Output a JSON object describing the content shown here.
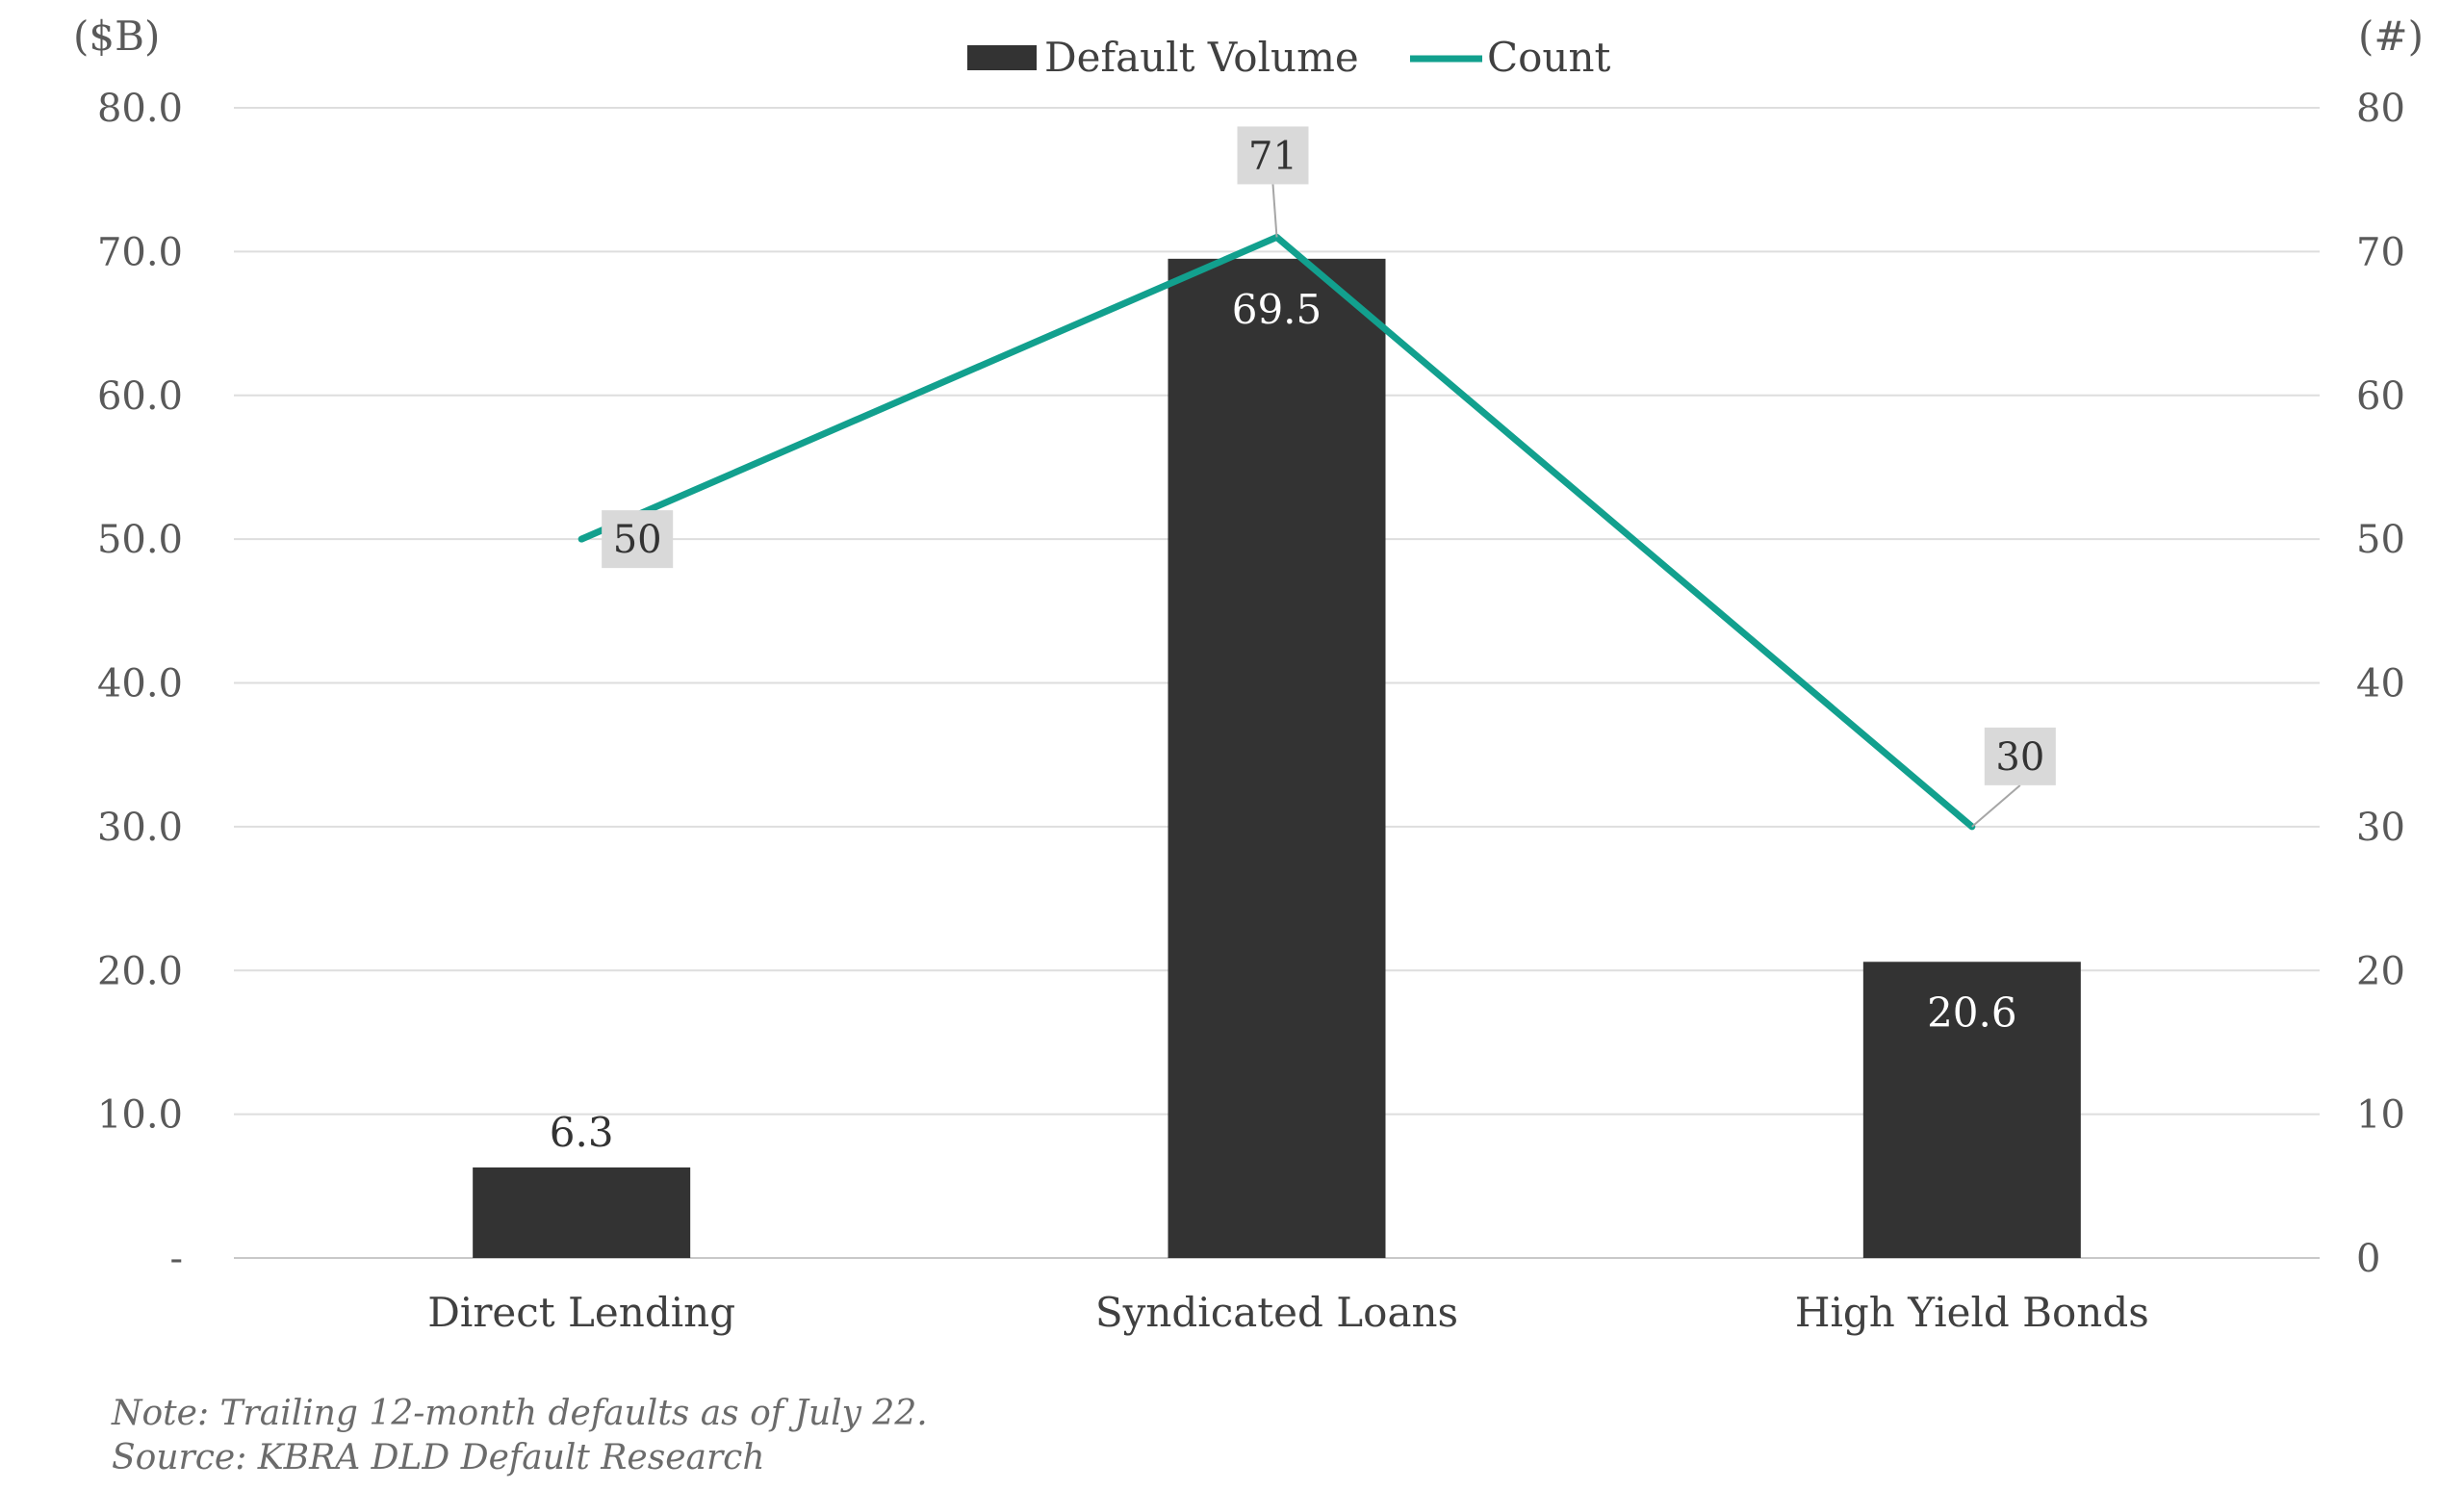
{
  "chart_data": {
    "type": "bar",
    "categories": [
      "Direct Lending",
      "Syndicated Loans",
      "High Yield Bonds"
    ],
    "series": [
      {
        "name": "Default Volume",
        "type": "bar",
        "axis": "left",
        "values": [
          6.3,
          69.5,
          20.6
        ],
        "labels": [
          "6.3",
          "69.5",
          "20.6"
        ],
        "color": "#333333"
      },
      {
        "name": "Count",
        "type": "line",
        "axis": "right",
        "values": [
          50,
          71,
          30
        ],
        "labels": [
          "50",
          "71",
          "30"
        ],
        "color": "#12a08e"
      }
    ],
    "y_left": {
      "unit": "($B)",
      "range": [
        0,
        80
      ],
      "ticks": [
        "-",
        "10.0",
        "20.0",
        "30.0",
        "40.0",
        "50.0",
        "60.0",
        "70.0",
        "80.0"
      ]
    },
    "y_right": {
      "unit": "(#)",
      "range": [
        0,
        80
      ],
      "ticks": [
        "0",
        "10",
        "20",
        "30",
        "40",
        "50",
        "60",
        "70",
        "80"
      ]
    },
    "grid": true,
    "legend": "top-center"
  },
  "footnotes": {
    "note": "Note: Trailing 12-month defaults as of July 22.",
    "source": "Source: KBRA DLD Default Research"
  }
}
